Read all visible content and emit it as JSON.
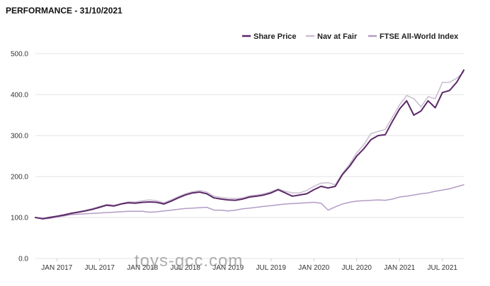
{
  "title": "PERFORMANCE - 31/10/2021",
  "watermark": "toys-gcc.com",
  "chart_data": {
    "type": "line",
    "title": "PERFORMANCE - 31/10/2021",
    "xlabel": "",
    "ylabel": "",
    "ylim": [
      0,
      500
    ],
    "y_ticks": [
      "0.0",
      "100.0",
      "200.0",
      "300.0",
      "400.0",
      "500.0"
    ],
    "x_range": [
      "2016-10",
      "2021-10"
    ],
    "x_ticks": [
      {
        "label": "JAN 2017",
        "x": "2017-01"
      },
      {
        "label": "JUL 2017",
        "x": "2017-07"
      },
      {
        "label": "JAN 2018",
        "x": "2018-01"
      },
      {
        "label": "JUL 2018",
        "x": "2018-07"
      },
      {
        "label": "JAN 2019",
        "x": "2019-01"
      },
      {
        "label": "JUL 2019",
        "x": "2019-07"
      },
      {
        "label": "JAN 2020",
        "x": "2020-01"
      },
      {
        "label": "JUL 2020",
        "x": "2020-07"
      },
      {
        "label": "JAN 2021",
        "x": "2021-01"
      },
      {
        "label": "JUL 2021",
        "x": "2021-07"
      }
    ],
    "grid": true,
    "legend_position": "top-right",
    "x": [
      "2016-10",
      "2016-11",
      "2016-12",
      "2017-01",
      "2017-02",
      "2017-03",
      "2017-04",
      "2017-05",
      "2017-06",
      "2017-07",
      "2017-08",
      "2017-09",
      "2017-10",
      "2017-11",
      "2017-12",
      "2018-01",
      "2018-02",
      "2018-03",
      "2018-04",
      "2018-05",
      "2018-06",
      "2018-07",
      "2018-08",
      "2018-09",
      "2018-10",
      "2018-11",
      "2018-12",
      "2019-01",
      "2019-02",
      "2019-03",
      "2019-04",
      "2019-05",
      "2019-06",
      "2019-07",
      "2019-08",
      "2019-09",
      "2019-10",
      "2019-11",
      "2019-12",
      "2020-01",
      "2020-02",
      "2020-03",
      "2020-04",
      "2020-05",
      "2020-06",
      "2020-07",
      "2020-08",
      "2020-09",
      "2020-10",
      "2020-11",
      "2020-12",
      "2021-01",
      "2021-02",
      "2021-03",
      "2021-04",
      "2021-05",
      "2021-06",
      "2021-07",
      "2021-08",
      "2021-09",
      "2021-10"
    ],
    "series": [
      {
        "name": "Share Price",
        "color": "#5b2768",
        "width": 2,
        "values": [
          100,
          97,
          100,
          103,
          106,
          110,
          113,
          116,
          120,
          125,
          130,
          128,
          133,
          136,
          135,
          137,
          138,
          137,
          133,
          140,
          148,
          155,
          160,
          162,
          158,
          148,
          145,
          143,
          142,
          145,
          150,
          152,
          155,
          160,
          168,
          160,
          152,
          155,
          158,
          168,
          176,
          172,
          176,
          205,
          225,
          250,
          268,
          290,
          300,
          302,
          335,
          365,
          385,
          350,
          360,
          385,
          368,
          405,
          410,
          430,
          460
        ]
      },
      {
        "name": "Nav at Fair",
        "color": "#c8bcd0",
        "width": 1.5,
        "values": [
          100,
          98,
          101,
          104,
          107,
          111,
          114,
          118,
          122,
          127,
          132,
          130,
          134,
          138,
          138,
          141,
          143,
          141,
          136,
          143,
          151,
          158,
          163,
          166,
          162,
          152,
          149,
          147,
          146,
          148,
          153,
          155,
          158,
          163,
          170,
          164,
          160,
          160,
          166,
          176,
          184,
          185,
          180,
          208,
          230,
          258,
          278,
          305,
          310,
          315,
          345,
          375,
          398,
          390,
          370,
          395,
          390,
          430,
          430,
          440,
          455
        ]
      },
      {
        "name": "FTSE All-World Index",
        "color": "#b39cc5",
        "width": 1.5,
        "values": [
          100,
          96,
          98,
          101,
          104,
          107,
          108,
          109,
          110,
          111,
          112,
          113,
          114,
          115,
          115,
          115,
          113,
          114,
          116,
          118,
          120,
          122,
          123,
          124,
          125,
          118,
          118,
          116,
          118,
          121,
          123,
          125,
          127,
          129,
          131,
          133,
          134,
          135,
          136,
          137,
          135,
          118,
          126,
          133,
          137,
          140,
          141,
          142,
          143,
          142,
          145,
          150,
          152,
          155,
          158,
          160,
          164,
          167,
          170,
          175,
          180
        ]
      }
    ]
  }
}
